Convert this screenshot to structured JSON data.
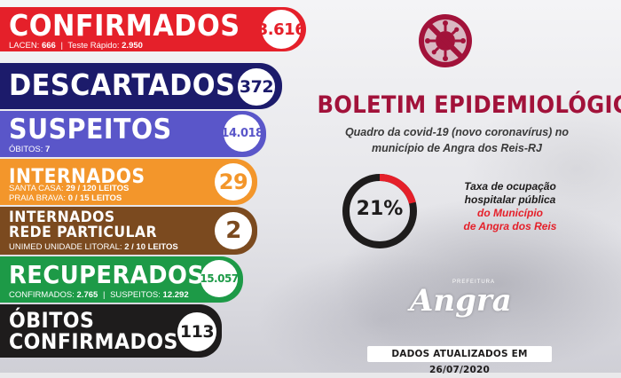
{
  "cards": {
    "confirmados": {
      "title": "CONFIRMADOS",
      "value": "3.616",
      "sub_lacen_label": "LACEN:",
      "sub_lacen_value": "666",
      "sub_rapido_label": "Teste Rápido:",
      "sub_rapido_value": "2.950",
      "color": "#e5202a"
    },
    "descartados": {
      "title": "DESCARTADOS",
      "value": "372",
      "color": "#1c1b6b"
    },
    "suspeitos": {
      "title": "SUSPEITOS",
      "value": "14.018",
      "sub_obitos_label": "ÓBITOS:",
      "sub_obitos_value": "7",
      "color": "#5a56c9"
    },
    "internados": {
      "title": "INTERNADOS",
      "value": "29",
      "line1_label": "SANTA CASA:",
      "line1_value": "29 / 120 LEITOS",
      "line2_label": "PRAIA BRAVA:",
      "line2_value": "0 / 15 LEITOS",
      "color": "#f3962b"
    },
    "internados_particular": {
      "title_line1": "INTERNADOS",
      "title_line2": "REDE PARTICULAR",
      "value": "2",
      "sub_label": "UNIMED UNIDADE LITORAL:",
      "sub_value": "2 / 10 LEITOS",
      "color": "#7b4a1f"
    },
    "recuperados": {
      "title": "RECUPERADOS",
      "value": "15.057",
      "sub_conf_label": "CONFIRMADOS:",
      "sub_conf_value": "2.765",
      "sub_susp_label": "SUSPEITOS:",
      "sub_susp_value": "12.292",
      "color": "#1d9a47"
    },
    "obitos": {
      "title_line1": "ÓBITOS",
      "title_line2": "CONFIRMADOS",
      "value": "113",
      "color": "#1e1c1c"
    }
  },
  "header": {
    "logo_icon": "no-coronavirus-icon",
    "title": "BOLETIM EPIDEMIOLÓGICO",
    "subtitle_line1": "Quadro da covid-19 (novo coronavírus) no",
    "subtitle_line2": "município de Angra dos Reis-RJ",
    "accent_color": "#a2123a"
  },
  "occupancy": {
    "percent": 21,
    "label": "21%",
    "text_line1": "Taxa de ocupação",
    "text_line2": "hospitalar pública",
    "text_line3": "do Município",
    "text_line4": "de Angra dos Reis"
  },
  "brand": {
    "small": "PREFEITURA",
    "name": "Angra"
  },
  "footer": {
    "updated": "DADOS ATUALIZADOS EM 26/07/2020"
  }
}
